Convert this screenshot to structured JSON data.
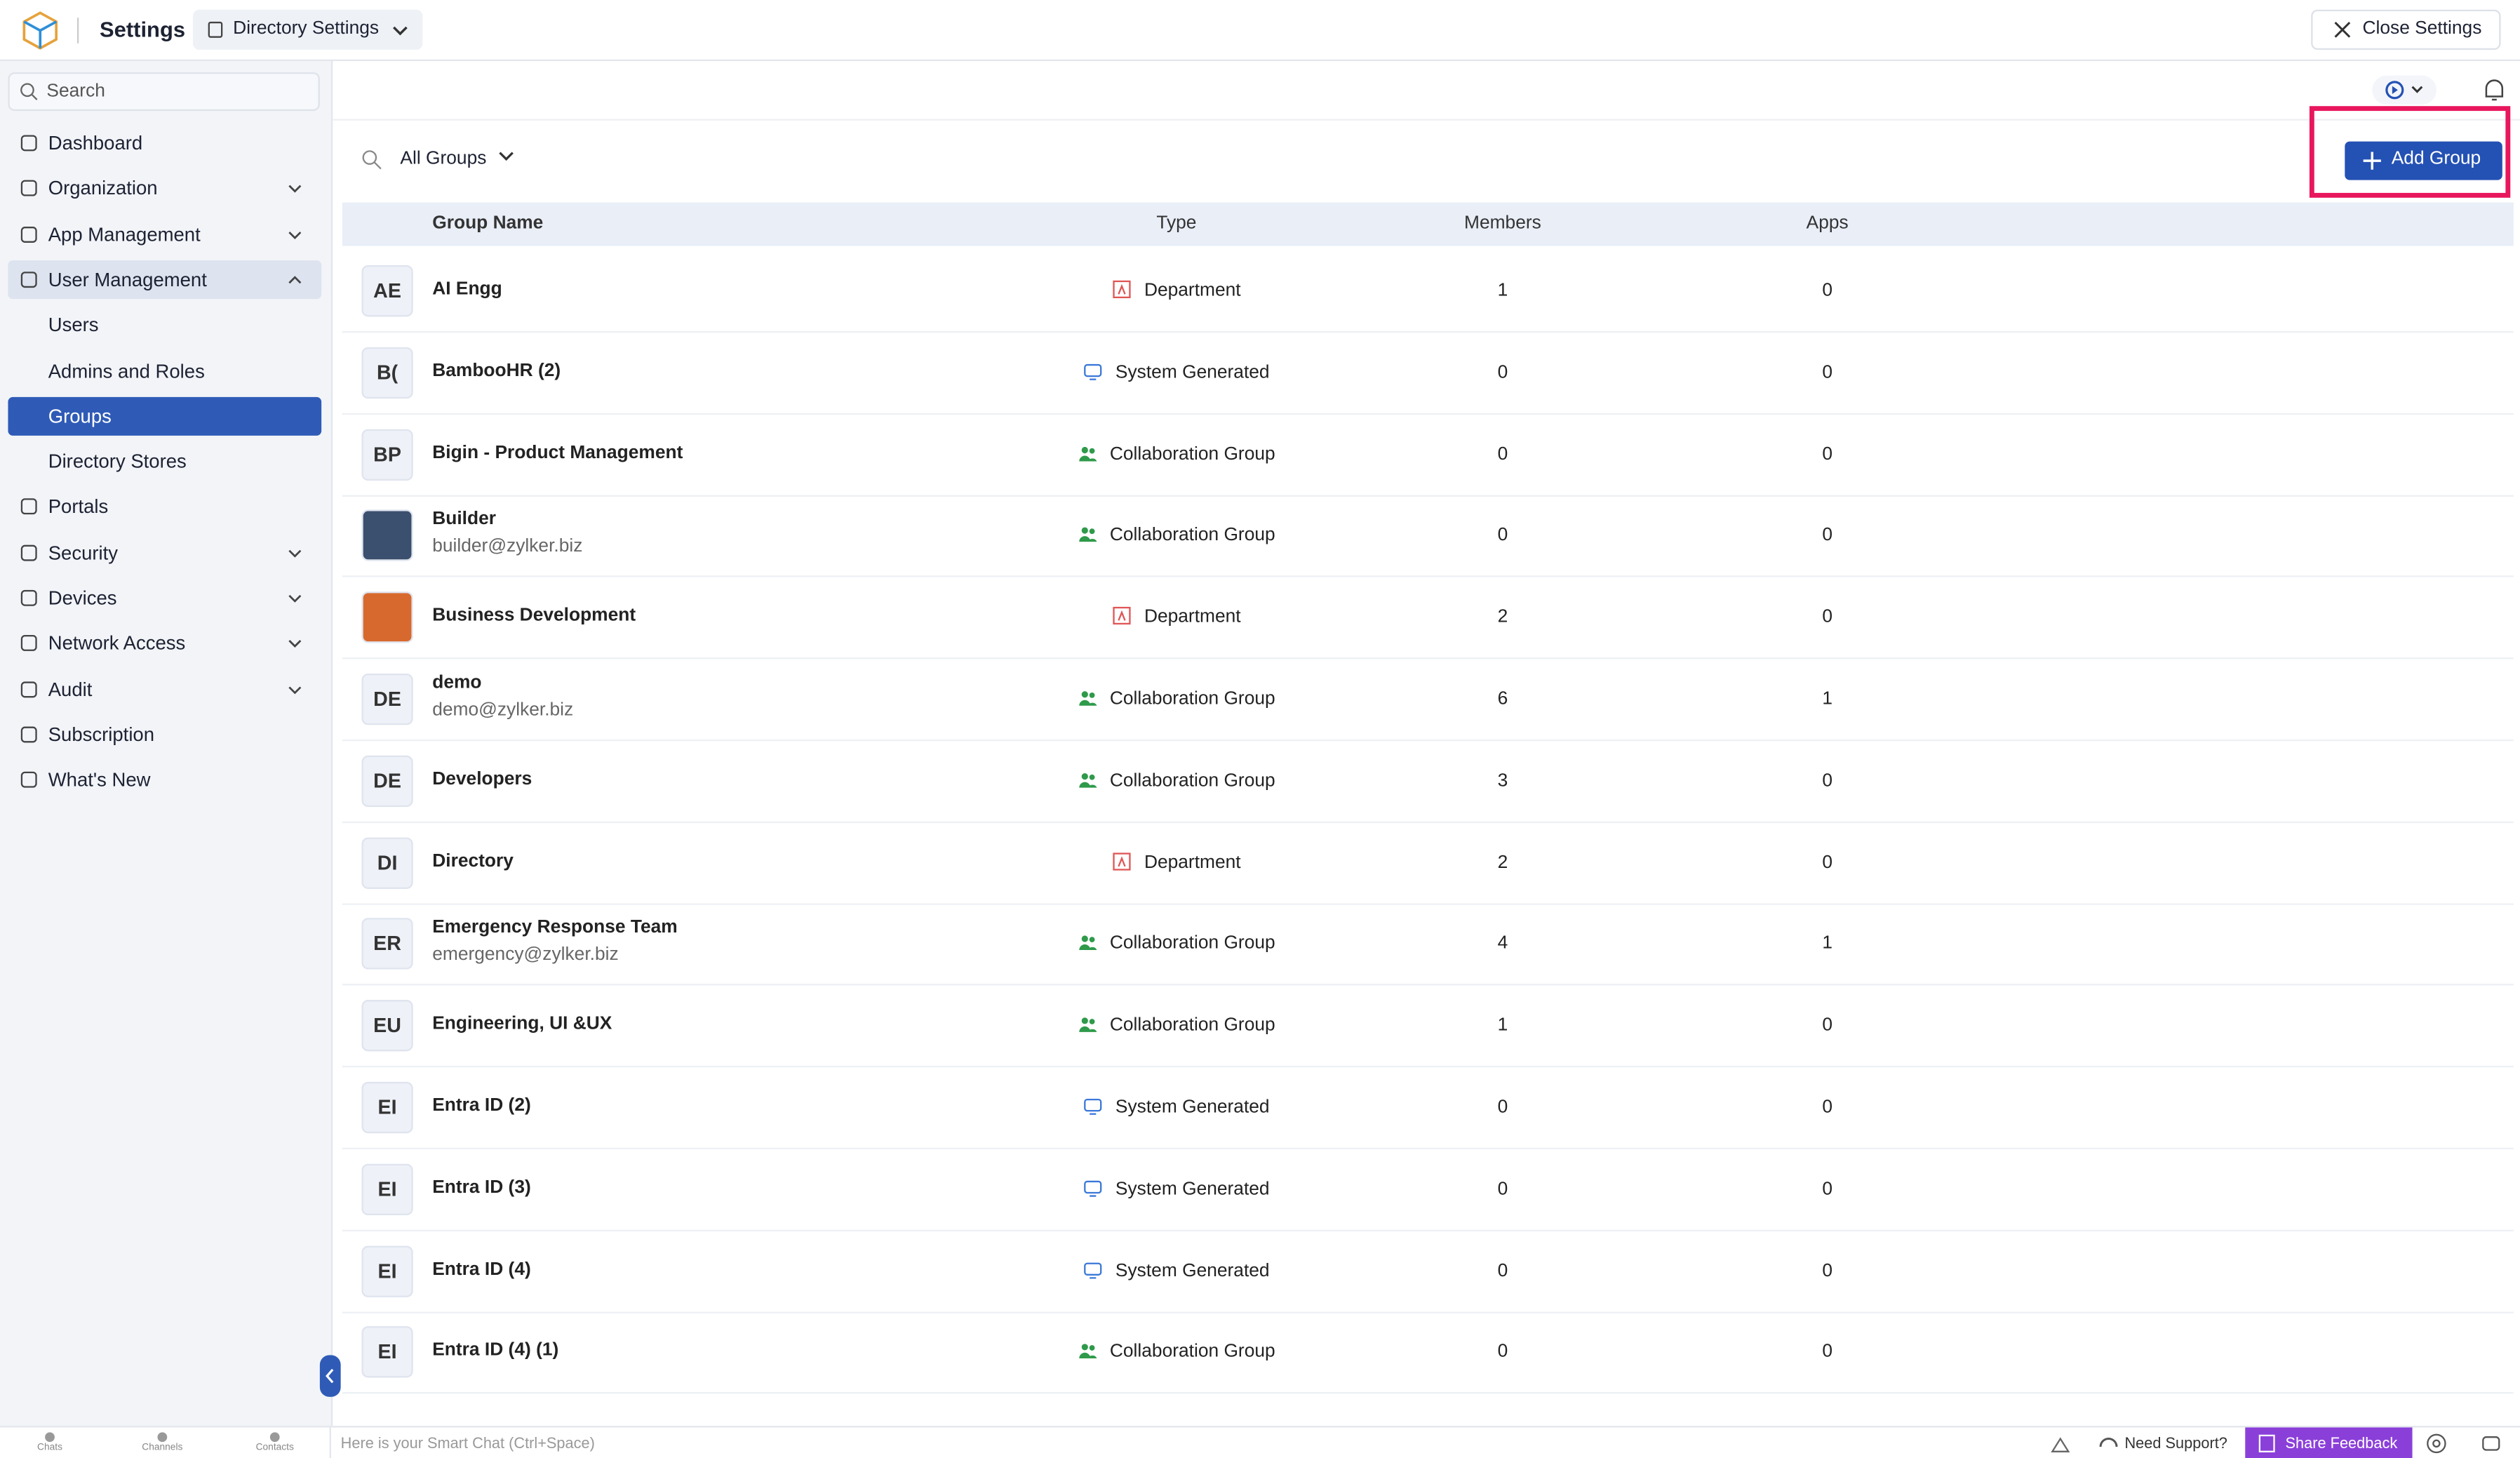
{
  "header": {
    "title": "Settings",
    "context": "Directory Settings",
    "close": "Close Settings"
  },
  "sidebar": {
    "search": "Search",
    "items": [
      {
        "label": "Dashboard",
        "expandable": false
      },
      {
        "label": "Organization",
        "expandable": true
      },
      {
        "label": "App Management",
        "expandable": true
      },
      {
        "label": "User Management",
        "expandable": true,
        "open": true,
        "children": [
          {
            "label": "Users"
          },
          {
            "label": "Admins and Roles"
          },
          {
            "label": "Groups",
            "selected": true
          },
          {
            "label": "Directory Stores"
          }
        ]
      },
      {
        "label": "Portals",
        "expandable": false
      },
      {
        "label": "Security",
        "expandable": true
      },
      {
        "label": "Devices",
        "expandable": true
      },
      {
        "label": "Network Access",
        "expandable": true
      },
      {
        "label": "Audit",
        "expandable": true
      },
      {
        "label": "Subscription",
        "expandable": false
      },
      {
        "label": "What's New",
        "expandable": false
      }
    ]
  },
  "toolbar": {
    "filter": "All Groups",
    "add_button": "Add Group"
  },
  "table": {
    "columns": [
      "Group Name",
      "Type",
      "Members",
      "Apps"
    ],
    "rows": [
      {
        "initials": "AE",
        "name": "AI Engg",
        "type": "Department",
        "members": "1",
        "apps": "0"
      },
      {
        "initials": "B(",
        "name": "BambooHR (2)",
        "type": "System Generated",
        "members": "0",
        "apps": "0"
      },
      {
        "initials": "BP",
        "name": "Bigin - Product Management",
        "type": "Collaboration Group",
        "members": "0",
        "apps": "0"
      },
      {
        "name": "Builder",
        "email": "builder@zylker.biz",
        "type": "Collaboration Group",
        "members": "0",
        "apps": "0"
      },
      {
        "name": "Business Development",
        "type": "Department",
        "members": "2",
        "apps": "0"
      },
      {
        "initials": "DE",
        "name": "demo",
        "email": "demo@zylker.biz",
        "type": "Collaboration Group",
        "members": "6",
        "apps": "1"
      },
      {
        "initials": "DE",
        "name": "Developers",
        "type": "Collaboration Group",
        "members": "3",
        "apps": "0"
      },
      {
        "initials": "DI",
        "name": "Directory",
        "type": "Department",
        "members": "2",
        "apps": "0"
      },
      {
        "initials": "ER",
        "name": "Emergency Response Team",
        "email": "emergency@zylker.biz",
        "type": "Collaboration Group",
        "members": "4",
        "apps": "1"
      },
      {
        "initials": "EU",
        "name": "Engineering, UI &UX",
        "type": "Collaboration Group",
        "members": "1",
        "apps": "0"
      },
      {
        "initials": "EI",
        "name": "Entra ID (2)",
        "type": "System Generated",
        "members": "0",
        "apps": "0"
      },
      {
        "initials": "EI",
        "name": "Entra ID (3)",
        "type": "System Generated",
        "members": "0",
        "apps": "0"
      },
      {
        "initials": "EI",
        "name": "Entra ID (4)",
        "type": "System Generated",
        "members": "0",
        "apps": "0"
      },
      {
        "initials": "EI",
        "name": "Entra ID (4) (1)",
        "type": "Collaboration Group",
        "members": "0",
        "apps": "0"
      }
    ]
  },
  "footer": {
    "tabs": [
      "Chats",
      "Channels",
      "Contacts"
    ],
    "chat_hint": "Here is your Smart Chat (Ctrl+Space)",
    "support": "Need Support?",
    "feedback": "Share Feedback"
  }
}
